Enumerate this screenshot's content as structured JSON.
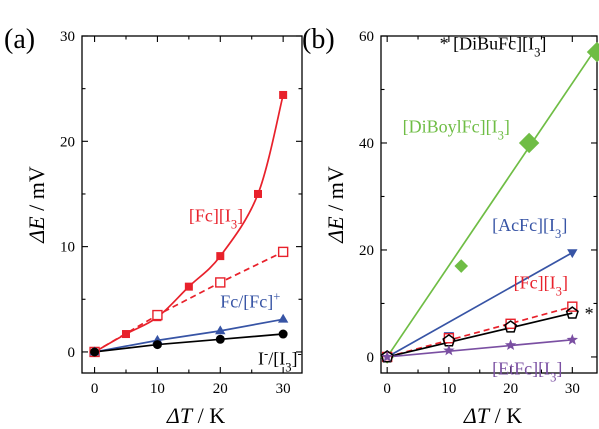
{
  "chart_data": [
    {
      "type": "line",
      "panel_label": "(a)",
      "xlabel_sym": "ΔT",
      "xlabel_unit": " / K",
      "ylabel_sym": "ΔE",
      "ylabel_unit": " / mV",
      "xlim": [
        -2,
        33
      ],
      "ylim": [
        -2,
        30
      ],
      "x_ticks": [
        0,
        10,
        20,
        30
      ],
      "y_ticks": [
        0,
        10,
        20,
        30
      ],
      "series": [
        {
          "name": "[Fc][I3]",
          "color": "#e8212b",
          "marker": "square",
          "x": [
            0,
            5,
            10,
            15,
            20,
            26,
            30
          ],
          "y": [
            0,
            1.7,
            3.3,
            6.2,
            9.1,
            15.0,
            24.4
          ],
          "line": "smooth"
        },
        {
          "color": "#e8212b",
          "marker": "open-square",
          "dash": true,
          "x": [
            0,
            10,
            20,
            30
          ],
          "y": [
            0,
            3.5,
            6.6,
            9.5
          ],
          "line": "straight"
        },
        {
          "name": "Fc/[Fc]+",
          "color": "#3754a5",
          "marker": "triangle",
          "x": [
            0,
            10,
            20,
            30
          ],
          "y": [
            0,
            1.1,
            2.0,
            3.1
          ],
          "line": "straight"
        },
        {
          "name": "I−/[I3]−",
          "color": "#000000",
          "marker": "circle",
          "x": [
            0,
            10,
            20,
            30
          ],
          "y": [
            0,
            0.7,
            1.2,
            1.7
          ],
          "line": "straight"
        }
      ],
      "annotations": [
        {
          "base": "[Fc][I",
          "sub": "3",
          "tail": "]",
          "x": 15,
          "y": 12.4,
          "color": "#e8212b"
        },
        {
          "base": "Fc/[Fc]",
          "sup": "+",
          "x": 20,
          "y": 4.2,
          "color": "#3754a5"
        },
        {
          "base": "I",
          "sup": "-",
          "base2": "/[I",
          "sub": "3",
          "tail": "]",
          "sup2": "-",
          "x": 26,
          "y": -1.2,
          "color": "#000000"
        }
      ]
    },
    {
      "type": "line",
      "panel_label": "(b)",
      "xlabel_sym": "ΔT",
      "xlabel_unit": " / K",
      "ylabel_sym": "ΔE",
      "ylabel_unit": " / mV",
      "xlim": [
        -1,
        34
      ],
      "ylim": [
        -3,
        60
      ],
      "x_ticks": [
        0,
        10,
        20,
        30
      ],
      "y_ticks": [
        0,
        20,
        40,
        60
      ],
      "series": [
        {
          "name": "[DiBoylFc][I3]",
          "color": "#6fbd45",
          "marker": "diamond",
          "x": [
            0,
            12,
            23,
            34
          ],
          "y": [
            0,
            17,
            40,
            57
          ],
          "sizes": [
            8,
            8,
            12,
            12
          ],
          "fit": [
            [
              0,
              0
            ],
            [
              34,
              58
            ]
          ]
        },
        {
          "name": "[AcFc][I3]",
          "color": "#3754a5",
          "marker": "triangle-down",
          "x": [
            0,
            10,
            30
          ],
          "y": [
            0,
            4,
            19.5
          ],
          "fit": [
            [
              0,
              0
            ],
            [
              30,
              19.5
            ]
          ]
        },
        {
          "name": "[Fc][I3]",
          "color": "#e8212b",
          "marker": "open-square",
          "dash": true,
          "x": [
            0,
            10,
            20,
            30
          ],
          "y": [
            0,
            3.5,
            6.2,
            9.4
          ],
          "fit": [
            [
              0,
              0
            ],
            [
              30,
              9.4
            ]
          ]
        },
        {
          "name": "[DiBuFc][I3]",
          "color": "#000000",
          "marker": "open-pentagon",
          "x": [
            0,
            10,
            20,
            30
          ],
          "y": [
            0,
            3,
            5.6,
            8.2
          ],
          "fit": [
            [
              0,
              0
            ],
            [
              30,
              8.2
            ]
          ]
        },
        {
          "name": "[EtFc][I3]",
          "color": "#7a4fa2",
          "marker": "star",
          "x": [
            0,
            10,
            20,
            30
          ],
          "y": [
            0,
            1.2,
            2.2,
            3.2
          ],
          "fit": [
            [
              0,
              0
            ],
            [
              30,
              3.2
            ]
          ]
        }
      ],
      "annotations": [
        {
          "base": "* [DiBuFc][I",
          "sub": "3",
          "tail": "]",
          "x": 8.5,
          "y": 57.5,
          "color": "#000000"
        },
        {
          "base": "[DiBoylFc][I",
          "sub": "3",
          "tail": "]",
          "x": 2.5,
          "y": 42,
          "color": "#6fbd45"
        },
        {
          "base": "[AcFc][I",
          "sub": "3",
          "tail": "]",
          "x": 17,
          "y": 23.5,
          "color": "#3754a5"
        },
        {
          "base": "[Fc][I",
          "sub": "3",
          "tail": "]",
          "x": 20.5,
          "y": 12.8,
          "color": "#e8212b"
        },
        {
          "base": "*",
          "x": 32,
          "y": 7,
          "color": "#000000"
        },
        {
          "base": "[EtFc][I",
          "sub": "3",
          "tail": "]",
          "x": 17,
          "y": -3.3,
          "color": "#7a4fa2"
        }
      ]
    }
  ]
}
